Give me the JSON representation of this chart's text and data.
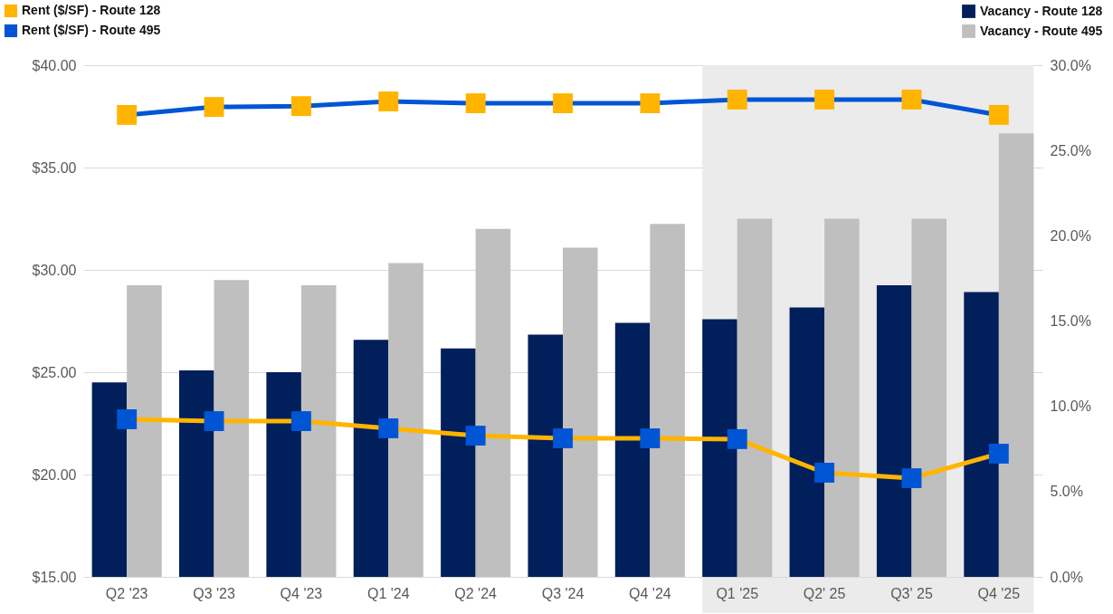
{
  "chart_data": {
    "type": "bar",
    "categories": [
      "Q2 '23",
      "Q3 '23",
      "Q4 '23",
      "Q1 '24",
      "Q2 '24",
      "Q3 '24",
      "Q4 '24",
      "Q1 '25",
      "Q2' 25",
      "Q3' 25",
      "Q4 '25"
    ],
    "series": [
      {
        "name": "Vacancy - Route 128",
        "axis": "y2",
        "color": "#001f5b",
        "values": [
          11.4,
          12.1,
          12.0,
          13.9,
          13.4,
          14.2,
          14.9,
          15.1,
          15.8,
          17.1,
          16.7
        ]
      },
      {
        "name": "Vacancy - Route 495",
        "axis": "y2",
        "color": "#bfbfbf",
        "values": [
          17.1,
          17.4,
          17.1,
          18.4,
          20.4,
          19.3,
          20.7,
          21.0,
          21.0,
          21.0,
          26.0
        ]
      },
      {
        "name": "Rent ($/SF) - Route 128",
        "type": "line",
        "color": "#0055d4",
        "values": [
          37.57,
          37.96,
          38.0,
          38.23,
          38.14,
          38.14,
          38.14,
          38.32,
          38.32,
          38.32,
          37.57
        ]
      },
      {
        "name": "Rent ($/SF) - Route 495",
        "type": "line",
        "color": "#ffb400",
        "values": [
          22.7,
          22.61,
          22.61,
          22.26,
          21.9,
          21.77,
          21.77,
          21.73,
          20.09,
          19.82,
          21.02
        ]
      }
    ],
    "ylim": [
      15,
      40
    ],
    "yticks": [
      {
        "value": 15,
        "label": "$15.00"
      },
      {
        "value": 20,
        "label": "$20.00"
      },
      {
        "value": 25,
        "label": "$25.00"
      },
      {
        "value": 30,
        "label": "$30.00"
      },
      {
        "value": 35,
        "label": "$35.00"
      },
      {
        "value": 40,
        "label": "$40.00"
      }
    ],
    "y2lim": [
      0,
      30
    ],
    "y2ticks": [
      {
        "value": 0,
        "label": "0.0%"
      },
      {
        "value": 5,
        "label": "5.0%"
      },
      {
        "value": 10,
        "label": "10.0%"
      },
      {
        "value": 15,
        "label": "15.0%"
      },
      {
        "value": 20,
        "label": "20.0%"
      },
      {
        "value": 25,
        "label": "25.0%"
      },
      {
        "value": 30,
        "label": "30.0%"
      }
    ],
    "bands": [
      {
        "axis": "x",
        "from": "Q1 '25",
        "to": "Q4 '25",
        "color": "#ebebeb"
      }
    ],
    "grid": "y",
    "legend": "top",
    "marker": "square",
    "line_style": "solid"
  }
}
